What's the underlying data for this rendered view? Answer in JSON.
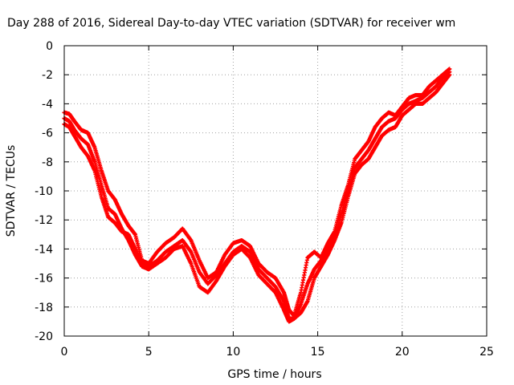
{
  "chart_data": {
    "type": "scatter",
    "title": "Day 288 of 2016, Sidereal Day-to-day VTEC variation (SDTVAR) for receiver wm",
    "xlabel": "GPS time / hours",
    "ylabel": "SDTVAR / TECUs",
    "xlim": [
      0,
      25
    ],
    "ylim": [
      -20,
      0
    ],
    "xticks": [
      "0",
      "5",
      "10",
      "15",
      "20",
      "25"
    ],
    "yticks": [
      "0",
      "-2",
      "-4",
      "-6",
      "-8",
      "-10",
      "-12",
      "-14",
      "-16",
      "-18",
      "-20"
    ],
    "grid": true,
    "marker": "+",
    "color": "#ff0000",
    "series": [
      {
        "x": [
          0.0,
          0.3,
          0.6,
          1.0,
          1.4,
          1.8,
          2.2,
          2.6,
          3.0,
          3.4,
          3.8,
          4.2,
          4.6,
          5.0,
          5.5,
          6.0,
          6.5,
          7.0,
          7.5,
          8.0,
          8.5,
          9.0,
          9.5,
          10.0,
          10.5,
          11.0,
          11.5,
          12.0,
          12.5,
          13.0,
          13.3,
          13.6,
          14.0,
          14.4,
          14.8,
          15.2,
          15.6,
          16.0,
          16.4,
          16.8,
          17.2,
          17.6,
          18.0,
          18.4,
          18.8,
          19.2,
          19.6,
          20.0,
          20.4,
          20.8,
          21.2,
          21.6,
          22.0,
          22.4,
          22.8
        ],
        "y": [
          -4.6,
          -4.7,
          -5.2,
          -5.8,
          -6.0,
          -7.0,
          -8.6,
          -10.0,
          -10.6,
          -11.6,
          -12.4,
          -13.0,
          -14.8,
          -15.0,
          -14.2,
          -13.6,
          -13.2,
          -12.6,
          -13.4,
          -14.8,
          -16.0,
          -15.6,
          -14.4,
          -13.6,
          -13.4,
          -13.8,
          -15.0,
          -15.6,
          -16.0,
          -17.0,
          -18.2,
          -18.6,
          -17.0,
          -14.6,
          -14.2,
          -14.6,
          -13.6,
          -12.8,
          -11.0,
          -9.6,
          -7.8,
          -7.2,
          -6.6,
          -5.6,
          -5.0,
          -4.6,
          -4.8,
          -4.2,
          -3.6,
          -3.4,
          -3.4,
          -2.8,
          -2.4,
          -2.0,
          -1.6
        ]
      },
      {
        "x": [
          0.0,
          0.3,
          0.6,
          1.0,
          1.4,
          1.8,
          2.2,
          2.6,
          3.0,
          3.4,
          3.8,
          4.2,
          4.6,
          5.0,
          5.5,
          6.0,
          6.5,
          7.0,
          7.5,
          8.0,
          8.5,
          9.0,
          9.5,
          10.0,
          10.5,
          11.0,
          11.5,
          12.0,
          12.5,
          13.0,
          13.3,
          13.6,
          14.0,
          14.4,
          14.8,
          15.2,
          15.6,
          16.0,
          16.4,
          16.8,
          17.2,
          17.6,
          18.0,
          18.4,
          18.8,
          19.2,
          19.6,
          20.0,
          20.4,
          20.8,
          21.2,
          21.6,
          22.0,
          22.4,
          22.8
        ],
        "y": [
          -5.0,
          -5.2,
          -5.8,
          -6.4,
          -6.8,
          -8.0,
          -9.6,
          -11.2,
          -11.6,
          -12.6,
          -13.4,
          -14.4,
          -15.2,
          -15.4,
          -15.0,
          -14.6,
          -14.0,
          -13.8,
          -15.0,
          -16.6,
          -17.0,
          -16.2,
          -15.2,
          -14.4,
          -14.0,
          -14.6,
          -15.8,
          -16.4,
          -17.0,
          -18.2,
          -19.0,
          -18.8,
          -18.4,
          -17.6,
          -16.0,
          -15.2,
          -14.4,
          -13.4,
          -12.2,
          -10.4,
          -8.8,
          -8.2,
          -7.8,
          -7.0,
          -6.2,
          -5.8,
          -5.6,
          -4.8,
          -4.4,
          -4.0,
          -4.0,
          -3.6,
          -3.2,
          -2.6,
          -2.0
        ]
      },
      {
        "x": [
          0.0,
          0.3,
          0.6,
          1.0,
          1.4,
          1.8,
          2.2,
          2.6,
          3.0,
          3.4,
          3.8,
          4.2,
          4.6,
          5.0,
          5.5,
          6.0,
          6.5,
          7.0,
          7.5,
          8.0,
          8.5,
          9.0,
          9.5,
          10.0,
          10.5,
          11.0,
          11.5,
          12.0,
          12.5,
          13.0,
          13.3,
          13.6,
          14.0,
          14.4,
          14.8,
          15.2,
          15.6,
          16.0,
          16.4,
          16.8,
          17.2,
          17.6,
          18.0,
          18.4,
          18.8,
          19.2,
          19.6,
          20.0,
          20.4,
          20.8,
          21.2,
          21.6,
          22.0,
          22.4,
          22.8
        ],
        "y": [
          -5.4,
          -5.6,
          -6.2,
          -7.0,
          -7.6,
          -8.6,
          -10.4,
          -11.8,
          -12.2,
          -12.8,
          -13.0,
          -14.0,
          -15.0,
          -15.2,
          -14.8,
          -14.2,
          -13.8,
          -13.4,
          -14.2,
          -15.6,
          -16.4,
          -15.8,
          -15.0,
          -14.2,
          -13.8,
          -14.2,
          -15.4,
          -16.0,
          -16.6,
          -17.6,
          -18.8,
          -18.8,
          -17.8,
          -16.4,
          -15.4,
          -14.8,
          -14.0,
          -13.2,
          -11.6,
          -10.0,
          -8.4,
          -7.8,
          -7.2,
          -6.4,
          -5.6,
          -5.2,
          -5.0,
          -4.4,
          -4.0,
          -3.8,
          -3.6,
          -3.2,
          -2.8,
          -2.2,
          -1.8
        ]
      }
    ]
  }
}
